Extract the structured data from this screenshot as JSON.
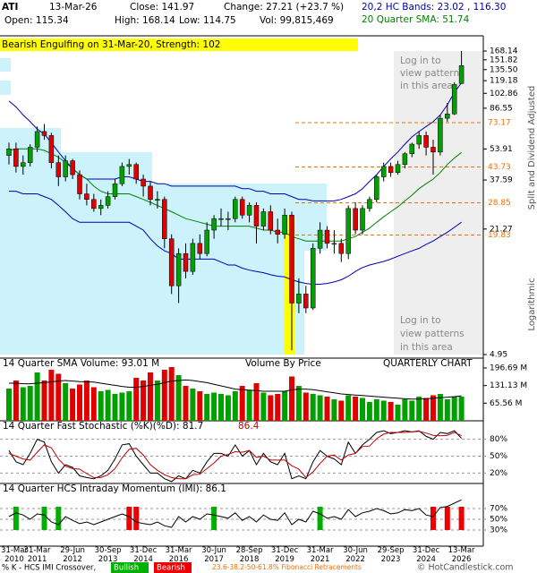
{
  "header": {
    "symbol": "ATI",
    "date": "13-Mar-26",
    "close": "Close: 141.97",
    "change": "Change: 27.21 (+23.7 %)",
    "open": "Open: 115.34",
    "high": "High: 168.14",
    "low": "Low: 114.75",
    "volume": "Vol: 99,815,469",
    "bands": "20,2 HC Bands: 23.02 , 116.30",
    "sma": "20 Quarter SMA: 51.74"
  },
  "pattern": "Bearish Engulfing on 31-Mar-20, Strength: 102",
  "notes": [
    [
      "Log in to",
      "view patterns",
      "in this area"
    ],
    [
      "Log in to",
      "view patterns",
      "in this area"
    ]
  ],
  "side_labels": [
    "Split and Dividend Adjusted",
    "Logarithmic"
  ],
  "legend": {
    "text": "% K - HCS IMI Crossover,",
    "bullish": "Bullish",
    "bearish": "Bearish",
    "fibonacci": "23.6-38.2-50-61.8% Fibonacci Retracements",
    "copyright": "© HotCandlestick.com"
  },
  "chart_data": [
    {
      "type": "candlestick",
      "log": true,
      "ylim": [
        4.95,
        168.14
      ],
      "yticks": [
        168.14,
        151.82,
        {
          "value": 135.5,
          "label": "135.50"
        },
        119.18,
        102.86,
        86.55,
        53.91,
        37.59,
        21.27,
        4.95
      ],
      "categories": [
        "31-Mar\n2010",
        null,
        null,
        null,
        "31-Mar\n2011",
        null,
        null,
        null,
        null,
        "29-Jun\n2012",
        null,
        null,
        null,
        null,
        "30-Sep\n2013",
        null,
        null,
        null,
        null,
        "31-Dec\n2014",
        null,
        null,
        null,
        null,
        "31-Mar\n2016",
        null,
        null,
        null,
        null,
        "30-Jun\n2017",
        null,
        null,
        null,
        null,
        "28-Sep\n2018",
        null,
        null,
        null,
        null,
        "31-Dec\n2019",
        null,
        null,
        null,
        null,
        "31-Mar\n2021",
        null,
        null,
        null,
        null,
        "30-Jun\n2022",
        null,
        null,
        null,
        null,
        "29-Sep\n2023",
        null,
        null,
        null,
        null,
        "31-Dec\n2024",
        null,
        null,
        null,
        null,
        "13-Mar\n2026"
      ],
      "open": [
        50,
        54,
        44,
        46,
        55,
        66,
        63,
        46,
        39,
        47,
        40,
        32,
        30,
        27,
        28,
        31,
        36,
        44,
        45,
        38,
        35,
        30,
        30,
        19,
        11,
        16,
        13,
        18,
        16,
        21,
        24,
        24,
        24,
        30,
        25,
        28,
        22,
        26,
        21,
        20,
        25,
        9,
        10,
        8.5,
        17,
        21,
        18,
        18,
        16,
        27,
        21,
        27,
        30,
        39,
        44,
        41,
        45,
        51,
        57,
        63,
        55,
        52,
        77,
        81,
        115.34
      ],
      "high": [
        58,
        58,
        50,
        57,
        70,
        72,
        65,
        50,
        50,
        48,
        42,
        36,
        32,
        30,
        33,
        38,
        46,
        48,
        46,
        40,
        37,
        33,
        31,
        20,
        17,
        18,
        19,
        20,
        23,
        25,
        27,
        26,
        31,
        31,
        29,
        29,
        27,
        28,
        24,
        27,
        26,
        12,
        11,
        18,
        23,
        22,
        21,
        19,
        28,
        29,
        28,
        31,
        40,
        46,
        46,
        47,
        52,
        58,
        66,
        66,
        60,
        80,
        92,
        117,
        168.14
      ],
      "low": [
        45,
        41,
        40,
        44,
        52,
        60,
        43,
        35,
        37,
        38,
        30,
        28,
        26,
        25,
        27,
        30,
        35,
        40,
        36,
        31,
        28,
        27,
        17,
        10,
        9,
        12,
        12.5,
        15,
        15.5,
        19,
        22,
        21,
        23,
        24,
        23,
        18,
        21,
        20,
        18,
        19,
        5.2,
        8,
        8,
        8.3,
        16,
        17,
        16,
        14.5,
        15,
        20,
        20,
        26,
        29,
        37,
        39,
        40,
        43,
        49,
        54,
        50,
        40,
        50,
        74,
        80,
        114.75
      ],
      "close": [
        54,
        44,
        46,
        55,
        66,
        63,
        46,
        39,
        47,
        40,
        32,
        30,
        27,
        28,
        31,
        36,
        44,
        45,
        38,
        35,
        30,
        30,
        19,
        11,
        16,
        13,
        18,
        16,
        21,
        24,
        24,
        24,
        30,
        25,
        28,
        22,
        26,
        21,
        20,
        25,
        9,
        10,
        8.5,
        17,
        21,
        18,
        18,
        16,
        27,
        21,
        27,
        30,
        39,
        44,
        41,
        45,
        51,
        57,
        63,
        55,
        52,
        77,
        81,
        114,
        141.97
      ],
      "colors": {
        "up": "#00a000",
        "down": "#e00000"
      },
      "bands": {
        "color": "#0000b0",
        "upper": [
          94,
          88,
          80,
          74,
          68,
          64,
          58,
          52,
          47,
          43,
          40,
          38,
          38,
          38,
          38,
          38,
          39,
          39,
          38,
          37,
          37,
          36,
          36,
          35,
          35,
          35,
          35,
          35,
          35,
          35,
          35,
          35,
          35,
          34,
          34,
          33,
          33,
          32,
          32,
          32,
          31,
          30,
          30,
          29.5,
          29.5,
          29.5,
          29.5,
          30,
          31,
          32,
          34,
          37,
          40,
          44,
          48,
          52,
          57,
          62,
          66,
          70,
          74,
          80,
          90,
          104,
          116.3
        ],
        "lower": [
          33,
          33,
          32,
          32,
          32,
          31,
          30,
          28,
          26,
          24,
          23,
          23,
          23,
          23,
          23,
          23,
          23,
          23,
          22,
          21,
          19,
          17.5,
          16.5,
          16,
          15,
          15,
          15,
          15,
          15,
          15,
          14.5,
          14,
          14,
          13.5,
          13.2,
          13,
          12.8,
          12.5,
          12.3,
          12.2,
          11.8,
          11.5,
          11.3,
          11.2,
          11.2,
          11.3,
          11.5,
          11.8,
          12.3,
          13,
          13.6,
          14,
          14.3,
          14.6,
          15,
          15.5,
          16,
          16.5,
          17,
          17.8,
          18.5,
          19.5,
          20.5,
          21.7,
          23.02
        ]
      },
      "sma": {
        "color": "#008000",
        "values": [
          53,
          54,
          54,
          54,
          54,
          53,
          51,
          49,
          46,
          43,
          40,
          38,
          35,
          33,
          32,
          32,
          32,
          32,
          31,
          30,
          29,
          28,
          27,
          26,
          25,
          24,
          23.5,
          23,
          22.5,
          22,
          22,
          22,
          22,
          22,
          22,
          21.5,
          21,
          21,
          20.5,
          20.5,
          19.5,
          19,
          18.5,
          18.5,
          18.5,
          18.5,
          18.5,
          18.5,
          19,
          19.5,
          20.5,
          21.5,
          23,
          24.5,
          26,
          27.5,
          29.5,
          31.5,
          34,
          36,
          38,
          41,
          45,
          48.5,
          51.74
        ]
      },
      "fibonacci": {
        "color": "#f07000",
        "levels": [
          73.17,
          43.73,
          28.85,
          19.83
        ]
      }
    },
    {
      "type": "bar",
      "title": "14 Quarter SMA Volume: 93.01 M",
      "subtitle": "Volume By Price",
      "label": "QUARTERLY CHART",
      "ylim": [
        0,
        200
      ],
      "yticks": [
        {
          "value": 196.69,
          "label": "196.69 M"
        },
        {
          "value": 131.13,
          "label": "131.13 M"
        },
        {
          "value": 65.56,
          "label": "65.56 M"
        }
      ],
      "values": [
        120,
        150,
        125,
        130,
        180,
        150,
        190,
        175,
        140,
        120,
        135,
        150,
        125,
        110,
        115,
        100,
        105,
        110,
        160,
        150,
        180,
        150,
        190,
        200,
        170,
        130,
        120,
        110,
        100,
        105,
        100,
        95,
        110,
        130,
        115,
        140,
        105,
        95,
        100,
        110,
        165,
        130,
        105,
        100,
        95,
        90,
        80,
        75,
        95,
        90,
        85,
        70,
        80,
        75,
        70,
        60,
        80,
        75,
        90,
        85,
        95,
        100,
        80,
        90,
        90
      ],
      "sma": [
        140,
        140,
        138,
        138,
        140,
        142,
        145,
        148,
        150,
        148,
        146,
        145,
        144,
        140,
        136,
        132,
        128,
        125,
        125,
        128,
        132,
        136,
        142,
        148,
        150,
        152,
        150,
        146,
        142,
        136,
        130,
        124,
        118,
        116,
        114,
        112,
        110,
        110,
        110,
        110,
        115,
        118,
        118,
        116,
        112,
        108,
        104,
        100,
        98,
        96,
        94,
        92,
        90,
        88,
        86,
        84,
        82,
        81,
        81,
        82,
        84,
        86,
        88,
        90,
        93.01
      ]
    },
    {
      "type": "line",
      "title": "14 Quarter Fast Stochastic (%K)(%D): 81.7",
      "title_d": "86.4",
      "ylim": [
        0,
        100
      ],
      "yticks": [
        {
          "value": 80,
          "label": "80%"
        },
        {
          "value": 50,
          "label": "50%"
        },
        {
          "value": 20,
          "label": "20%"
        }
      ],
      "series": [
        {
          "color": "#000000",
          "values": [
            60,
            40,
            35,
            55,
            80,
            75,
            40,
            20,
            35,
            30,
            15,
            12,
            10,
            15,
            25,
            45,
            70,
            72,
            50,
            35,
            20,
            20,
            10,
            5,
            15,
            10,
            25,
            20,
            40,
            55,
            55,
            50,
            70,
            50,
            60,
            35,
            55,
            40,
            35,
            55,
            10,
            15,
            10,
            40,
            60,
            50,
            45,
            35,
            75,
            55,
            70,
            80,
            92,
            95,
            90,
            92,
            95,
            93,
            95,
            85,
            80,
            92,
            90,
            95,
            81.7
          ]
        },
        {
          "color": "#c00000",
          "values": [
            55,
            50,
            45,
            43,
            57,
            70,
            65,
            45,
            32,
            28,
            27,
            19,
            12,
            12,
            17,
            28,
            47,
            62,
            64,
            52,
            35,
            25,
            17,
            12,
            10,
            10,
            17,
            18,
            28,
            38,
            50,
            53,
            58,
            57,
            60,
            48,
            50,
            43,
            43,
            43,
            33,
            27,
            12,
            22,
            37,
            50,
            52,
            43,
            52,
            55,
            67,
            68,
            81,
            89,
            92,
            92,
            92,
            93,
            94,
            91,
            87,
            86,
            87,
            92,
            86.4
          ]
        }
      ]
    },
    {
      "type": "line",
      "title": "14 Quarter HCS Intraday Momentum (IMI): 86.1",
      "ylim": [
        0,
        100
      ],
      "yticks": [
        {
          "value": 70,
          "label": "70%"
        },
        {
          "value": 50,
          "label": "50%"
        },
        {
          "value": 30,
          "label": "30%"
        }
      ],
      "values": [
        55,
        62,
        58,
        50,
        60,
        58,
        45,
        40,
        55,
        48,
        42,
        45,
        40,
        45,
        50,
        55,
        60,
        55,
        45,
        42,
        40,
        45,
        38,
        35,
        55,
        45,
        55,
        50,
        60,
        58,
        55,
        52,
        62,
        48,
        55,
        45,
        58,
        50,
        48,
        62,
        40,
        50,
        45,
        65,
        60,
        52,
        55,
        50,
        68,
        55,
        62,
        65,
        70,
        66,
        60,
        62,
        68,
        66,
        70,
        58,
        55,
        72,
        74,
        80,
        86.1
      ],
      "color": "#000000",
      "signal_colors": {
        "Bullish": "#00b000",
        "Bearish": "#ee0000"
      },
      "signals": [
        null,
        "Bullish",
        null,
        null,
        null,
        "Bullish",
        null,
        "Bullish",
        null,
        null,
        null,
        null,
        null,
        null,
        null,
        null,
        null,
        "Bearish",
        "Bearish",
        null,
        null,
        null,
        null,
        null,
        null,
        null,
        null,
        null,
        null,
        "Bullish",
        null,
        null,
        null,
        null,
        null,
        null,
        null,
        null,
        null,
        null,
        null,
        null,
        null,
        null,
        "Bullish",
        null,
        null,
        null,
        null,
        null,
        null,
        null,
        null,
        null,
        null,
        null,
        null,
        null,
        null,
        null,
        "Bearish",
        null,
        "Bearish",
        null,
        "Bearish"
      ]
    }
  ]
}
